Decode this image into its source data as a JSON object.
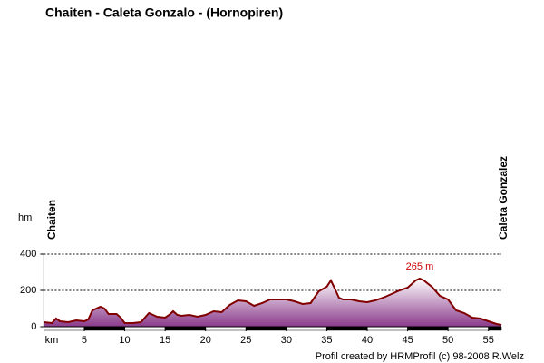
{
  "chart_data": {
    "type": "area",
    "title": "Chaiten - Caleta Gonzalo - (Hornopiren)",
    "y_label": "hm",
    "x_label": "km",
    "start_label": "Chaiten",
    "end_label": "Caleta Gonzalez",
    "annotation": "265 m",
    "footer": "Profil created by HRMProfil (c) 98-2008 R.Welz",
    "line_color": "#800000",
    "fill_color": "#8a3a8a",
    "annotation_color": "#cc0000",
    "grid": true,
    "xlim": [
      0,
      56.6
    ],
    "ylim": [
      0,
      400
    ],
    "xticks": [
      5,
      10,
      15,
      20,
      25,
      30,
      35,
      40,
      45,
      50,
      55
    ],
    "yticks": [
      0,
      200,
      400
    ],
    "x": [
      0,
      1,
      1.5,
      2,
      3,
      4,
      5,
      5.5,
      6,
      7,
      7.5,
      8,
      9,
      9.5,
      10,
      11,
      12,
      12.5,
      13,
      14,
      15,
      15.5,
      16,
      16.5,
      17,
      18,
      19,
      20,
      21,
      22,
      23,
      24,
      25,
      26,
      27,
      28,
      29,
      30,
      31,
      32,
      33,
      34,
      35,
      35.5,
      36,
      36.5,
      37,
      38,
      39,
      40,
      41,
      42,
      43,
      44,
      45,
      46,
      46.5,
      47,
      48,
      49,
      50,
      50.5,
      51,
      52,
      53,
      54,
      55,
      56,
      56.6
    ],
    "y": [
      25,
      20,
      45,
      30,
      25,
      35,
      30,
      40,
      90,
      110,
      100,
      70,
      70,
      50,
      20,
      20,
      25,
      50,
      75,
      55,
      50,
      65,
      85,
      65,
      60,
      65,
      55,
      65,
      85,
      80,
      120,
      145,
      140,
      115,
      130,
      150,
      150,
      150,
      140,
      125,
      130,
      195,
      220,
      255,
      210,
      160,
      150,
      150,
      140,
      135,
      145,
      160,
      180,
      200,
      215,
      255,
      265,
      255,
      220,
      170,
      150,
      120,
      90,
      75,
      50,
      45,
      30,
      15,
      10
    ]
  }
}
